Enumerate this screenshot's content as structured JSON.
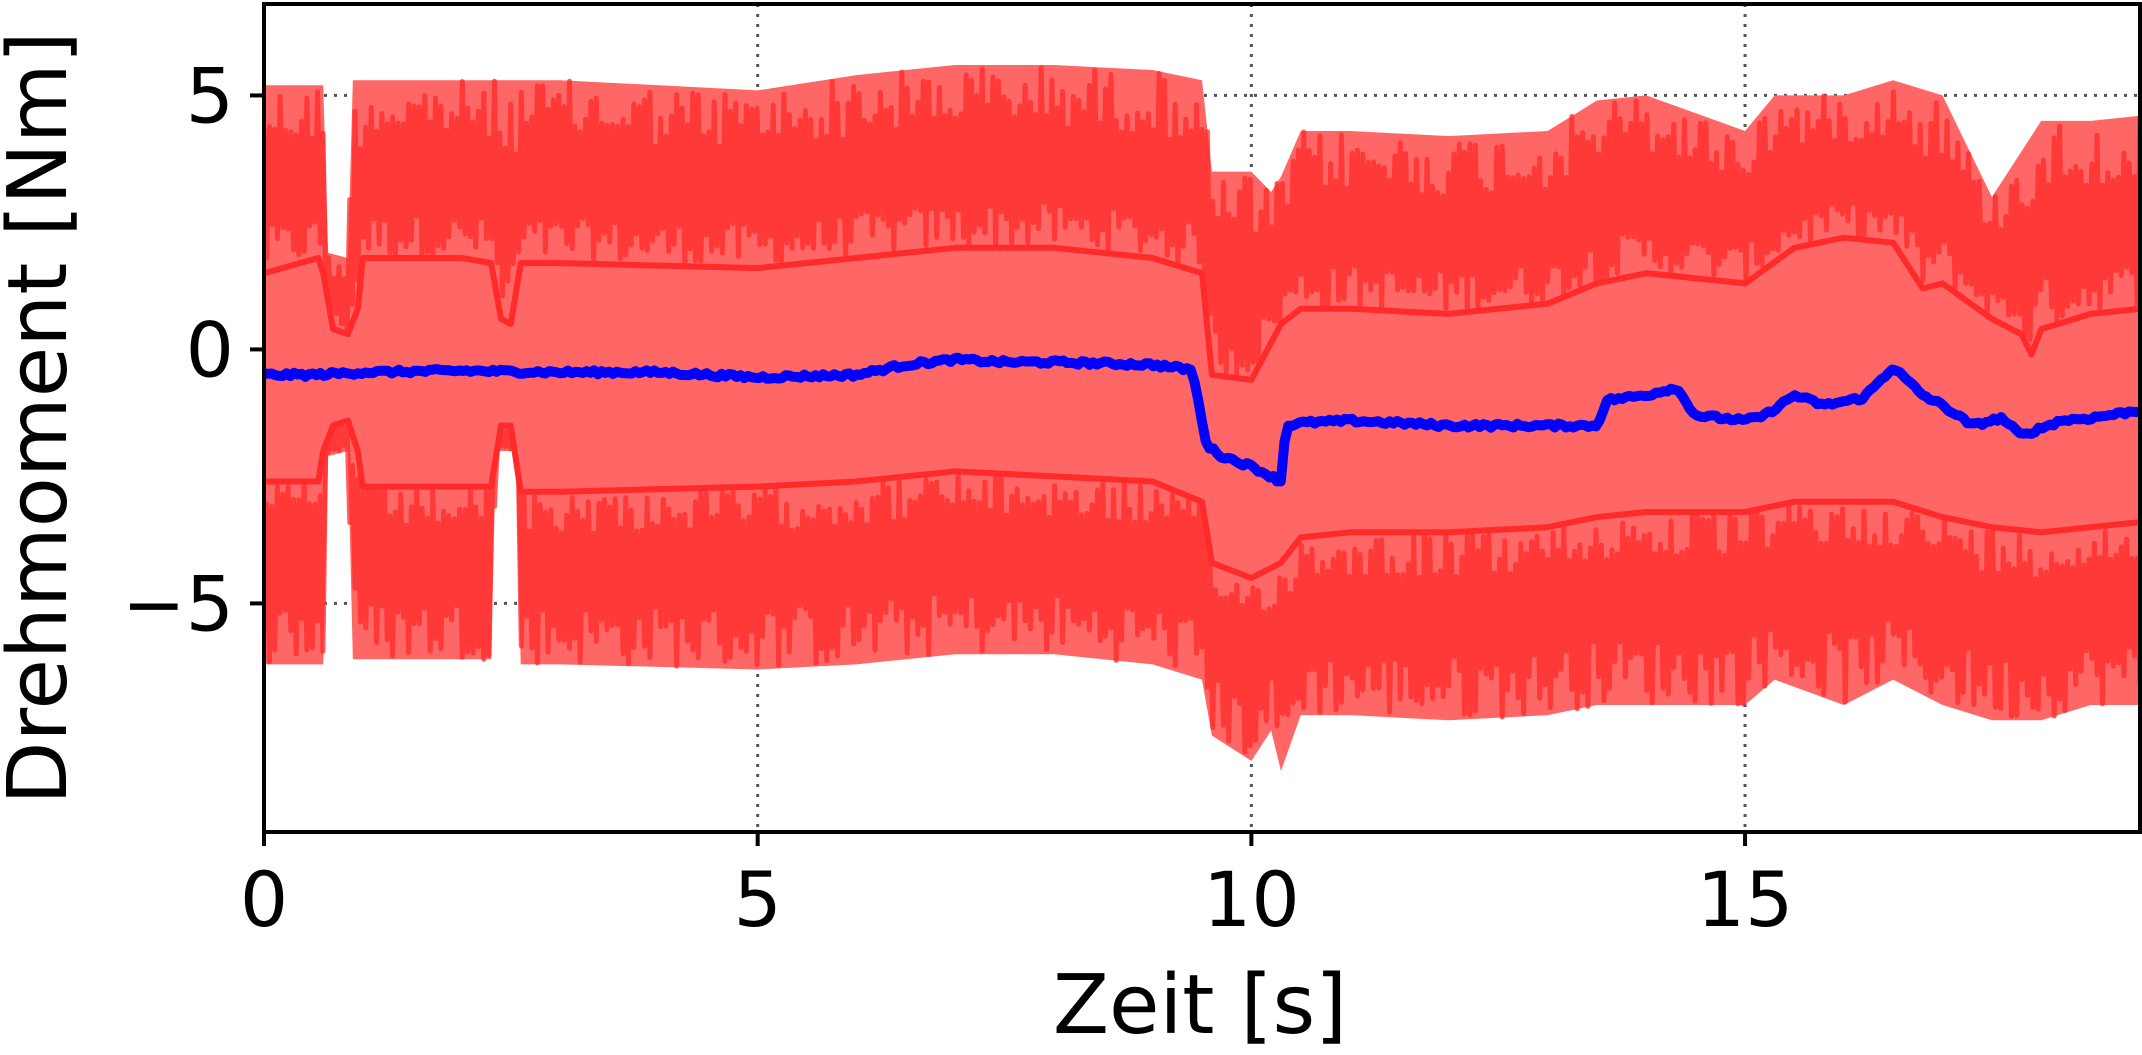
{
  "chart_data": {
    "type": "line",
    "title": "",
    "xlabel": "Zeit [s]",
    "ylabel": "Drehmoment [Nm]",
    "xlim": [
      0,
      19
    ],
    "ylim": [
      -9.5,
      6.8
    ],
    "xticks": [
      0,
      5,
      10,
      15
    ],
    "xtick_labels": [
      "0",
      "5",
      "10",
      "15"
    ],
    "yticks": [
      5,
      0,
      -5
    ],
    "ytick_labels": [
      "5",
      "0",
      "−5"
    ],
    "grid": "dotted, at ticks",
    "legend": "none",
    "colors": {
      "band_fill": "#ff6666",
      "band_edge": "#ff2a2a",
      "mean_line": "#0000ff",
      "grid": "#555555",
      "axis": "#000000"
    },
    "series": [
      {
        "role": "mean",
        "x": [
          0,
          0.5,
          1,
          2,
          3,
          4,
          5,
          6,
          6.5,
          7,
          7.5,
          8,
          9,
          9.4,
          9.55,
          9.7,
          10,
          10.3,
          10.35,
          10.5,
          11,
          12,
          13,
          13.5,
          13.6,
          14,
          14.3,
          14.5,
          15,
          15.2,
          15.5,
          15.8,
          16.2,
          16.5,
          16.8,
          17,
          17.3,
          17.6,
          17.8,
          18.2,
          18.5,
          19
        ],
        "y": [
          -0.5,
          -0.5,
          -0.45,
          -0.42,
          -0.45,
          -0.45,
          -0.55,
          -0.5,
          -0.3,
          -0.2,
          -0.25,
          -0.25,
          -0.3,
          -0.4,
          -1.9,
          -2.1,
          -2.3,
          -2.6,
          -1.5,
          -1.45,
          -1.4,
          -1.5,
          -1.5,
          -1.5,
          -1.0,
          -0.9,
          -0.75,
          -1.3,
          -1.4,
          -1.3,
          -0.9,
          -1.1,
          -0.95,
          -0.35,
          -0.9,
          -1.1,
          -1.5,
          -1.35,
          -1.7,
          -1.4,
          -1.35,
          -1.2
        ]
      },
      {
        "role": "band",
        "x": [
          0,
          0.6,
          0.65,
          0.85,
          0.9,
          1,
          2.3,
          2.35,
          2.55,
          2.6,
          3,
          5,
          6,
          7,
          8,
          9,
          9.5,
          9.6,
          10,
          10.2,
          10.3,
          10.5,
          11,
          12,
          13,
          13.5,
          14,
          15,
          15.3,
          16,
          16.5,
          17,
          17.5,
          18,
          18.5,
          19
        ],
        "upper": [
          5.2,
          5.2,
          1.9,
          1.8,
          5.3,
          5.3,
          5.3,
          5.3,
          5.3,
          5.3,
          5.3,
          5.1,
          5.4,
          5.6,
          5.6,
          5.5,
          5.3,
          3.5,
          3.5,
          3.1,
          3.4,
          4.3,
          4.3,
          4.2,
          4.3,
          4.9,
          5.0,
          4.3,
          5.0,
          5.0,
          5.3,
          5.0,
          3.0,
          4.5,
          4.5,
          4.6
        ],
        "lower": [
          -6.2,
          -6.2,
          -2.1,
          -2.0,
          -6.1,
          -6.1,
          -6.1,
          -2.0,
          -2.0,
          -6.2,
          -6.2,
          -6.3,
          -6.2,
          -6.0,
          -6.0,
          -6.2,
          -6.5,
          -7.6,
          -8.1,
          -7.5,
          -8.3,
          -7.2,
          -7.2,
          -7.3,
          -7.2,
          -7.0,
          -7.0,
          -7.0,
          -6.5,
          -7.0,
          -6.5,
          -7.0,
          -7.3,
          -7.3,
          -7.0,
          -7.0
        ]
      },
      {
        "role": "upper-envelope-line",
        "x": [
          0,
          0.55,
          0.6,
          0.7,
          0.85,
          0.95,
          1,
          2,
          2.3,
          2.4,
          2.5,
          2.6,
          3,
          5,
          6,
          7,
          8,
          9,
          9.5,
          9.6,
          10,
          10.3,
          10.5,
          11,
          12,
          13,
          13.5,
          14,
          15,
          15.5,
          16,
          16.5,
          16.8,
          17,
          17.5,
          17.8,
          17.9,
          18,
          18.5,
          19
        ],
        "y": [
          1.5,
          1.8,
          1.5,
          0.4,
          0.3,
          0.8,
          1.8,
          1.8,
          1.7,
          0.6,
          0.5,
          1.7,
          1.7,
          1.6,
          1.8,
          2.0,
          2.0,
          1.8,
          1.5,
          -0.5,
          -0.6,
          0.5,
          0.8,
          0.8,
          0.7,
          0.9,
          1.3,
          1.5,
          1.3,
          2.0,
          2.2,
          2.1,
          1.2,
          1.3,
          0.6,
          0.3,
          -0.1,
          0.4,
          0.7,
          0.8
        ]
      },
      {
        "role": "lower-envelope-line",
        "x": [
          0,
          0.55,
          0.6,
          0.7,
          0.85,
          0.95,
          1,
          2,
          2.3,
          2.4,
          2.5,
          2.6,
          3,
          5,
          6,
          7,
          8,
          9,
          9.5,
          9.6,
          10,
          10.3,
          10.5,
          11,
          12,
          13,
          13.5,
          14,
          15,
          15.5,
          16,
          16.5,
          17,
          17.5,
          18,
          18.5,
          19
        ],
        "y": [
          -2.6,
          -2.6,
          -2.0,
          -1.5,
          -1.4,
          -2.0,
          -2.7,
          -2.7,
          -2.7,
          -1.5,
          -1.5,
          -2.8,
          -2.8,
          -2.7,
          -2.6,
          -2.4,
          -2.5,
          -2.6,
          -3.0,
          -4.2,
          -4.5,
          -4.2,
          -3.7,
          -3.6,
          -3.6,
          -3.5,
          -3.3,
          -3.2,
          -3.2,
          -3.0,
          -3.0,
          -3.0,
          -3.3,
          -3.5,
          -3.6,
          -3.5,
          -3.4
        ]
      }
    ]
  }
}
